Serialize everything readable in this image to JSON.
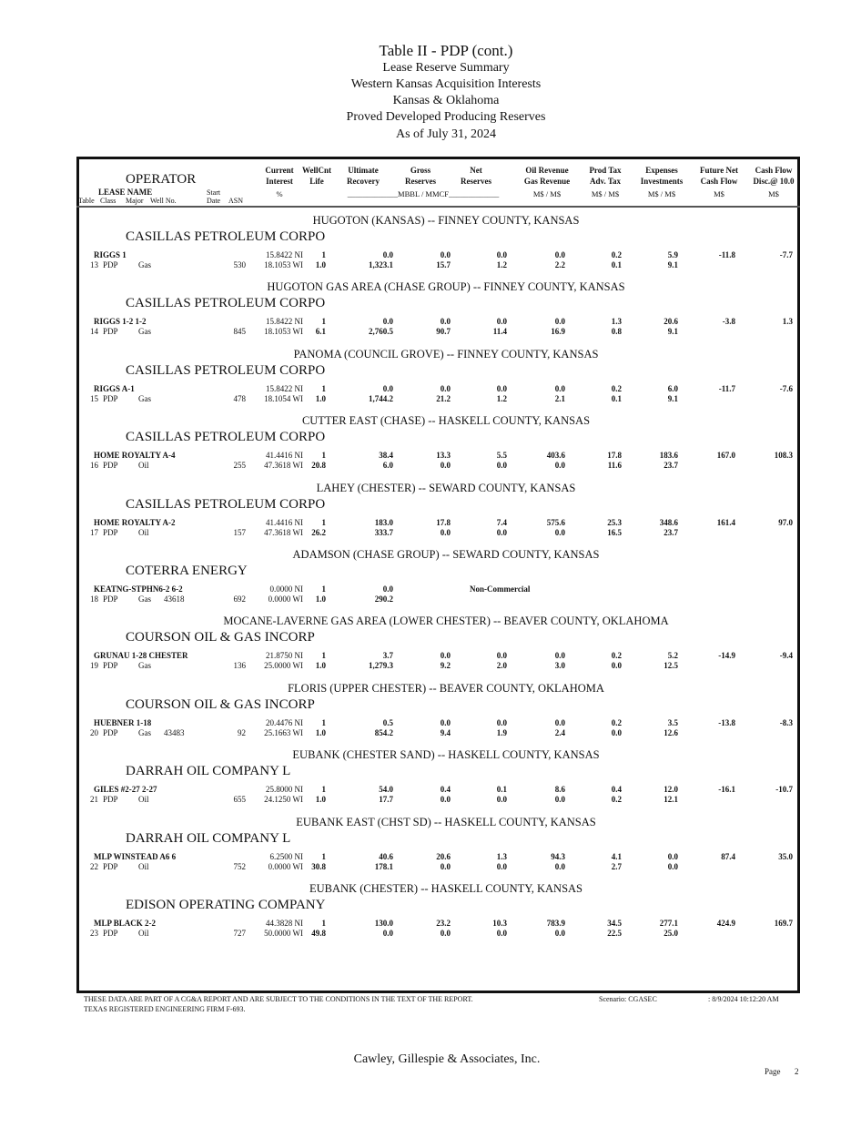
{
  "title": {
    "main": "Table II - PDP  (cont.)",
    "l2": "Lease Reserve Summary",
    "l3": "Western Kansas Acquisition Interests",
    "l4": "Kansas & Oklahoma",
    "l5": "Proved Developed Producing Reserves",
    "l6": "As of July 31, 2024"
  },
  "header": {
    "operator": "OPERATOR",
    "lease_name": "LEASE  NAME",
    "start": "Start",
    "table": "Table",
    "class": "Class",
    "major": "Major",
    "well_no": "Well No.",
    "date": "Date",
    "asn": "ASN",
    "current": "Current",
    "interest": "Interest",
    "pct": "%",
    "wellcnt": "WellCnt",
    "life": "Life",
    "ultimate": "Ultimate",
    "recovery": "Recovery",
    "gross": "Gross",
    "reserves": "Reserves",
    "net": "Net",
    "net_reserves": "Reserves",
    "mbbl": "_____________MBBL / MMCF_____________",
    "oil_revenue": "Oil Revenue",
    "gas_revenue": "Gas Revenue",
    "ms1": "M$ / M$",
    "prod_tax": "Prod Tax",
    "adv_tax": "Adv. Tax",
    "ms2": "M$ / M$",
    "expenses": "Expenses",
    "investments": "Investments",
    "ms3": "M$ / M$",
    "future_net": "Future Net",
    "cash_flow": "Cash Flow",
    "ms4": "M$",
    "cash_flow2": "Cash Flow",
    "disc": "Disc.@ 10.0",
    "ms5": "M$"
  },
  "groups": [
    {
      "field": "HUGOTON (KANSAS) --  FINNEY COUNTY, KANSAS",
      "operator": "CASILLAS PETROLEUM CORPO",
      "lease": "RIGGS 1",
      "table": "13",
      "class": "PDP",
      "major": "Gas",
      "well_no": "",
      "asn": "530",
      "ni": "15.8422 NI",
      "wi": "18.1053 WI",
      "wellcnt": "1",
      "life": "1.0",
      "ult_oil": "0.0",
      "ult_gas": "1,323.1",
      "gross_oil": "0.0",
      "gross_gas": "15.7",
      "net_oil": "0.0",
      "net_gas": "1.2",
      "oil_rev": "0.0",
      "gas_rev": "2.2",
      "prod_tax": "0.2",
      "adv_tax": "0.1",
      "expenses": "5.9",
      "investments": "9.1",
      "future_net": "-11.8",
      "disc": "-7.7"
    },
    {
      "field": "HUGOTON GAS AREA (CHASE GROUP) --  FINNEY COUNTY, KANSAS",
      "operator": "CASILLAS PETROLEUM CORPO",
      "lease": "RIGGS 1-2 1-2",
      "table": "14",
      "class": "PDP",
      "major": "Gas",
      "well_no": "",
      "asn": "845",
      "ni": "15.8422 NI",
      "wi": "18.1053 WI",
      "wellcnt": "1",
      "life": "6.1",
      "ult_oil": "0.0",
      "ult_gas": "2,760.5",
      "gross_oil": "0.0",
      "gross_gas": "90.7",
      "net_oil": "0.0",
      "net_gas": "11.4",
      "oil_rev": "0.0",
      "gas_rev": "16.9",
      "prod_tax": "1.3",
      "adv_tax": "0.8",
      "expenses": "20.6",
      "investments": "9.1",
      "future_net": "-3.8",
      "disc": "1.3"
    },
    {
      "field": "PANOMA (COUNCIL GROVE) --  FINNEY COUNTY, KANSAS",
      "operator": "CASILLAS PETROLEUM CORPO",
      "lease": "RIGGS A-1",
      "table": "15",
      "class": "PDP",
      "major": "Gas",
      "well_no": "",
      "asn": "478",
      "ni": "15.8422 NI",
      "wi": "18.1054 WI",
      "wellcnt": "1",
      "life": "1.0",
      "ult_oil": "0.0",
      "ult_gas": "1,744.2",
      "gross_oil": "0.0",
      "gross_gas": "21.2",
      "net_oil": "0.0",
      "net_gas": "1.2",
      "oil_rev": "0.0",
      "gas_rev": "2.1",
      "prod_tax": "0.2",
      "adv_tax": "0.1",
      "expenses": "6.0",
      "investments": "9.1",
      "future_net": "-11.7",
      "disc": "-7.6"
    },
    {
      "field": "CUTTER EAST (CHASE) --  HASKELL COUNTY, KANSAS",
      "operator": "CASILLAS PETROLEUM CORPO",
      "lease": "HOME ROYALTY A-4",
      "table": "16",
      "class": "PDP",
      "major": "Oil",
      "well_no": "",
      "asn": "255",
      "ni": "41.4416 NI",
      "wi": "47.3618 WI",
      "wellcnt": "1",
      "life": "20.8",
      "ult_oil": "38.4",
      "ult_gas": "6.0",
      "gross_oil": "13.3",
      "gross_gas": "0.0",
      "net_oil": "5.5",
      "net_gas": "0.0",
      "oil_rev": "403.6",
      "gas_rev": "0.0",
      "prod_tax": "17.8",
      "adv_tax": "11.6",
      "expenses": "183.6",
      "investments": "23.7",
      "future_net": "167.0",
      "disc": "108.3"
    },
    {
      "field": "LAHEY (CHESTER) --  SEWARD COUNTY, KANSAS",
      "operator": "CASILLAS PETROLEUM CORPO",
      "lease": "HOME ROYALTY A-2",
      "table": "17",
      "class": "PDP",
      "major": "Oil",
      "well_no": "",
      "asn": "157",
      "ni": "41.4416 NI",
      "wi": "47.3618 WI",
      "wellcnt": "1",
      "life": "26.2",
      "ult_oil": "183.0",
      "ult_gas": "333.7",
      "gross_oil": "17.8",
      "gross_gas": "0.0",
      "net_oil": "7.4",
      "net_gas": "0.0",
      "oil_rev": "575.6",
      "gas_rev": "0.0",
      "prod_tax": "25.3",
      "adv_tax": "16.5",
      "expenses": "348.6",
      "investments": "23.7",
      "future_net": "161.4",
      "disc": "97.0"
    },
    {
      "field": "ADAMSON (CHASE GROUP) --  SEWARD COUNTY, KANSAS",
      "operator": "COTERRA ENERGY",
      "lease": "KEATNG-STPHN6-2 6-2",
      "table": "18",
      "class": "PDP",
      "major": "Gas",
      "well_no": "43618",
      "asn": "692",
      "ni": "0.0000 NI",
      "wi": "0.0000 WI",
      "wellcnt": "1",
      "life": "1.0",
      "ult_oil": "0.0",
      "ult_gas": "290.2",
      "note": "Non-Commercial"
    },
    {
      "field": "MOCANE-LAVERNE GAS AREA (LOWER CHESTER) --  BEAVER COUNTY, OKLAHOMA",
      "operator": "COURSON OIL & GAS INCORP",
      "lease": "GRUNAU 1-28 CHESTER",
      "table": "19",
      "class": "PDP",
      "major": "Gas",
      "well_no": "",
      "asn": "136",
      "ni": "21.8750 NI",
      "wi": "25.0000 WI",
      "wellcnt": "1",
      "life": "1.0",
      "ult_oil": "3.7",
      "ult_gas": "1,279.3",
      "gross_oil": "0.0",
      "gross_gas": "9.2",
      "net_oil": "0.0",
      "net_gas": "2.0",
      "oil_rev": "0.0",
      "gas_rev": "3.0",
      "prod_tax": "0.2",
      "adv_tax": "0.0",
      "expenses": "5.2",
      "investments": "12.5",
      "future_net": "-14.9",
      "disc": "-9.4"
    },
    {
      "field": "FLORIS (UPPER CHESTER) --  BEAVER COUNTY, OKLAHOMA",
      "operator": "COURSON OIL & GAS INCORP",
      "lease": "HUEBNER 1-18",
      "table": "20",
      "class": "PDP",
      "major": "Gas",
      "well_no": "43483",
      "asn": "92",
      "ni": "20.4476 NI",
      "wi": "25.1663 WI",
      "wellcnt": "1",
      "life": "1.0",
      "ult_oil": "0.5",
      "ult_gas": "854.2",
      "gross_oil": "0.0",
      "gross_gas": "9.4",
      "net_oil": "0.0",
      "net_gas": "1.9",
      "oil_rev": "0.0",
      "gas_rev": "2.4",
      "prod_tax": "0.2",
      "adv_tax": "0.0",
      "expenses": "3.5",
      "investments": "12.6",
      "future_net": "-13.8",
      "disc": "-8.3"
    },
    {
      "field": "EUBANK (CHESTER SAND) --  HASKELL COUNTY, KANSAS",
      "operator": "DARRAH OIL COMPANY L",
      "lease": "GILES #2-27 2-27",
      "table": "21",
      "class": "PDP",
      "major": "Oil",
      "well_no": "",
      "asn": "655",
      "ni": "25.8000 NI",
      "wi": "24.1250 WI",
      "wellcnt": "1",
      "life": "1.0",
      "ult_oil": "54.0",
      "ult_gas": "17.7",
      "gross_oil": "0.4",
      "gross_gas": "0.0",
      "net_oil": "0.1",
      "net_gas": "0.0",
      "oil_rev": "8.6",
      "gas_rev": "0.0",
      "prod_tax": "0.4",
      "adv_tax": "0.2",
      "expenses": "12.0",
      "investments": "12.1",
      "future_net": "-16.1",
      "disc": "-10.7"
    },
    {
      "field": "EUBANK EAST (CHST SD) --  HASKELL COUNTY, KANSAS",
      "operator": "DARRAH OIL COMPANY L",
      "lease": "MLP WINSTEAD A6 6",
      "table": "22",
      "class": "PDP",
      "major": "Oil",
      "well_no": "",
      "asn": "752",
      "ni": "6.2500 NI",
      "wi": "0.0000 WI",
      "wellcnt": "1",
      "life": "30.8",
      "ult_oil": "40.6",
      "ult_gas": "178.1",
      "gross_oil": "20.6",
      "gross_gas": "0.0",
      "net_oil": "1.3",
      "net_gas": "0.0",
      "oil_rev": "94.3",
      "gas_rev": "0.0",
      "prod_tax": "4.1",
      "adv_tax": "2.7",
      "expenses": "0.0",
      "investments": "0.0",
      "future_net": "87.4",
      "disc": "35.0"
    },
    {
      "field": "EUBANK (CHESTER) --  HASKELL COUNTY, KANSAS",
      "operator": "EDISON OPERATING COMPANY",
      "lease": "MLP BLACK 2-2",
      "table": "23",
      "class": "PDP",
      "major": "Oil",
      "well_no": "",
      "asn": "727",
      "ni": "44.3828 NI",
      "wi": "50.0000 WI",
      "wellcnt": "1",
      "life": "49.8",
      "ult_oil": "130.0",
      "ult_gas": "0.0",
      "gross_oil": "23.2",
      "gross_gas": "0.0",
      "net_oil": "10.3",
      "net_gas": "0.0",
      "oil_rev": "783.9",
      "gas_rev": "0.0",
      "prod_tax": "34.5",
      "adv_tax": "22.5",
      "expenses": "277.1",
      "investments": "25.0",
      "future_net": "424.9",
      "disc": "169.7"
    }
  ],
  "footer": {
    "disclaimer": "THESE DATA ARE PART OF A CG&A REPORT AND ARE SUBJECT TO THE CONDITIONS IN THE TEXT OF THE REPORT.",
    "firm": "TEXAS REGISTERED ENGINEERING FIRM F-693.",
    "scenario": "Scenario: CGASEC",
    "timestamp": ": 8/9/2024  10:12:20 AM",
    "company": "Cawley, Gillespie & Associates, Inc.",
    "page_label": "Page",
    "page_number": "2"
  }
}
